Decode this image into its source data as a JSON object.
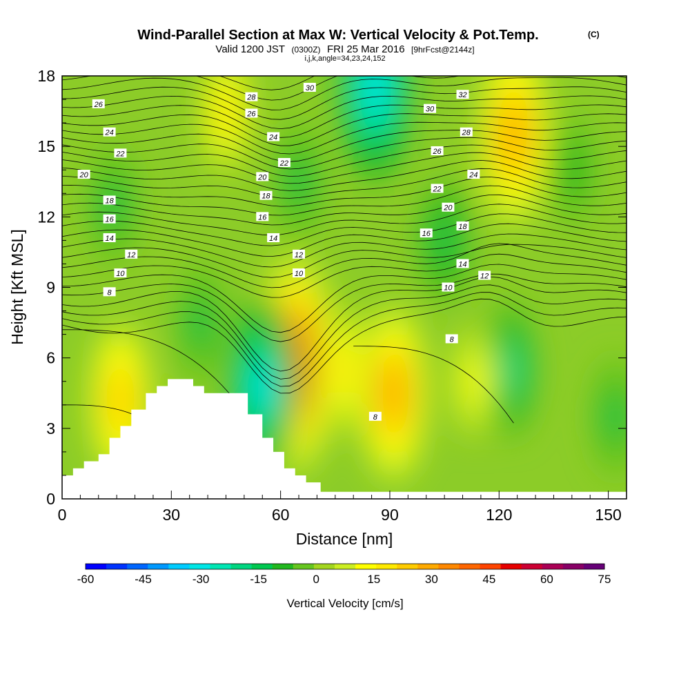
{
  "chart_data": {
    "type": "heatmap",
    "title_main": "Wind-Parallel Section at Max W: Vertical Velocity & Pot.Temp.",
    "title_mark": "(C)",
    "subtitle_a": "Valid 1200 JST",
    "subtitle_b": "(0300Z)",
    "subtitle_c": "FRI 25 Mar 2016",
    "subtitle_d": "[9hrFcst@2144z]",
    "subtitle2": "i,j,k,angle=34,23,24,152",
    "xlabel": "Distance [nm]",
    "ylabel": "Height [Kft MSL]",
    "xlim": [
      0,
      155
    ],
    "ylim": [
      0,
      18
    ],
    "x_ticks": [
      "0",
      "30",
      "60",
      "90",
      "120",
      "150"
    ],
    "y_ticks": [
      "0",
      "3",
      "6",
      "9",
      "12",
      "15",
      "18"
    ],
    "colorbar": {
      "label": "Vertical Velocity [cm/s]",
      "ticks": [
        "-60",
        "-45",
        "-30",
        "-15",
        "0",
        "15",
        "30",
        "45",
        "60",
        "75"
      ],
      "colors": [
        "#0000ff",
        "#0033ff",
        "#0066ff",
        "#0099ff",
        "#00ccff",
        "#00e6e6",
        "#00e6b3",
        "#00d680",
        "#00c850",
        "#22b81f",
        "#66c61f",
        "#a3d61f",
        "#ccee22",
        "#ffff00",
        "#ffea00",
        "#ffcc00",
        "#ffaa00",
        "#ff8800",
        "#ff6600",
        "#ff4400",
        "#e60000",
        "#cc0033",
        "#aa0055",
        "#880066",
        "#660077"
      ]
    },
    "velocity_anomalies": [
      {
        "x": 64,
        "y": 5.8,
        "value": 40
      },
      {
        "x": 91,
        "y": 4.5,
        "value": 28
      },
      {
        "x": 16,
        "y": 4.2,
        "value": 22
      },
      {
        "x": 124,
        "y": 15.5,
        "value": 30
      },
      {
        "x": 45,
        "y": 16.5,
        "value": 18
      },
      {
        "x": 86,
        "y": 17.5,
        "value": -30
      },
      {
        "x": 55,
        "y": 4.8,
        "value": -28
      },
      {
        "x": 123,
        "y": 5.5,
        "value": -18
      },
      {
        "x": 105,
        "y": 11,
        "value": -14
      },
      {
        "x": 38,
        "y": 7.5,
        "value": -12
      },
      {
        "x": 14,
        "y": 12.5,
        "value": -12
      },
      {
        "x": 65,
        "y": 13.5,
        "value": -12
      },
      {
        "x": 77,
        "y": 5.5,
        "value": 18
      },
      {
        "x": 113,
        "y": 5,
        "value": 12
      },
      {
        "x": 140,
        "y": 14,
        "value": -10
      },
      {
        "x": 152,
        "y": 3.5,
        "value": -12
      }
    ],
    "terrain": [
      {
        "x": 0,
        "h": 1.0
      },
      {
        "x": 3,
        "h": 1.3
      },
      {
        "x": 6,
        "h": 1.6
      },
      {
        "x": 10,
        "h": 1.9
      },
      {
        "x": 13,
        "h": 2.6
      },
      {
        "x": 16,
        "h": 3.1
      },
      {
        "x": 19,
        "h": 3.8
      },
      {
        "x": 23,
        "h": 4.5
      },
      {
        "x": 26,
        "h": 4.8
      },
      {
        "x": 29,
        "h": 5.1
      },
      {
        "x": 36,
        "h": 4.8
      },
      {
        "x": 39,
        "h": 4.5
      },
      {
        "x": 51,
        "h": 3.6
      },
      {
        "x": 55,
        "h": 2.6
      },
      {
        "x": 58,
        "h": 2.0
      },
      {
        "x": 61,
        "h": 1.3
      },
      {
        "x": 64,
        "h": 1.0
      },
      {
        "x": 67,
        "h": 0.7
      },
      {
        "x": 71,
        "h": 0.3
      },
      {
        "x": 155,
        "h": 0.3
      }
    ],
    "theta_contour_labels": [
      {
        "text": "26",
        "x": 10,
        "y": 16.8
      },
      {
        "text": "24",
        "x": 13,
        "y": 15.6
      },
      {
        "text": "22",
        "x": 16,
        "y": 14.7
      },
      {
        "text": "20",
        "x": 6,
        "y": 13.8
      },
      {
        "text": "18",
        "x": 13,
        "y": 12.7
      },
      {
        "text": "16",
        "x": 13,
        "y": 11.9
      },
      {
        "text": "14",
        "x": 13,
        "y": 11.1
      },
      {
        "text": "12",
        "x": 19,
        "y": 10.4
      },
      {
        "text": "10",
        "x": 16,
        "y": 9.6
      },
      {
        "text": "8",
        "x": 13,
        "y": 8.8
      },
      {
        "text": "28",
        "x": 52,
        "y": 17.1
      },
      {
        "text": "26",
        "x": 52,
        "y": 16.4
      },
      {
        "text": "24",
        "x": 58,
        "y": 15.4
      },
      {
        "text": "22",
        "x": 61,
        "y": 14.3
      },
      {
        "text": "20",
        "x": 55,
        "y": 13.7
      },
      {
        "text": "18",
        "x": 56,
        "y": 12.9
      },
      {
        "text": "16",
        "x": 55,
        "y": 12.0
      },
      {
        "text": "14",
        "x": 58,
        "y": 11.1
      },
      {
        "text": "12",
        "x": 65,
        "y": 10.4
      },
      {
        "text": "10",
        "x": 65,
        "y": 9.6
      },
      {
        "text": "30",
        "x": 68,
        "y": 17.5
      },
      {
        "text": "32",
        "x": 110,
        "y": 17.2
      },
      {
        "text": "30",
        "x": 101,
        "y": 16.6
      },
      {
        "text": "28",
        "x": 111,
        "y": 15.6
      },
      {
        "text": "26",
        "x": 103,
        "y": 14.8
      },
      {
        "text": "24",
        "x": 113,
        "y": 13.8
      },
      {
        "text": "22",
        "x": 103,
        "y": 13.2
      },
      {
        "text": "20",
        "x": 106,
        "y": 12.4
      },
      {
        "text": "18",
        "x": 110,
        "y": 11.6
      },
      {
        "text": "16",
        "x": 100,
        "y": 11.3
      },
      {
        "text": "14",
        "x": 110,
        "y": 10.0
      },
      {
        "text": "12",
        "x": 116,
        "y": 9.5
      },
      {
        "text": "10",
        "x": 106,
        "y": 9.0
      },
      {
        "text": "8",
        "x": 107,
        "y": 6.8
      },
      {
        "text": "8",
        "x": 86,
        "y": 3.5
      }
    ]
  }
}
